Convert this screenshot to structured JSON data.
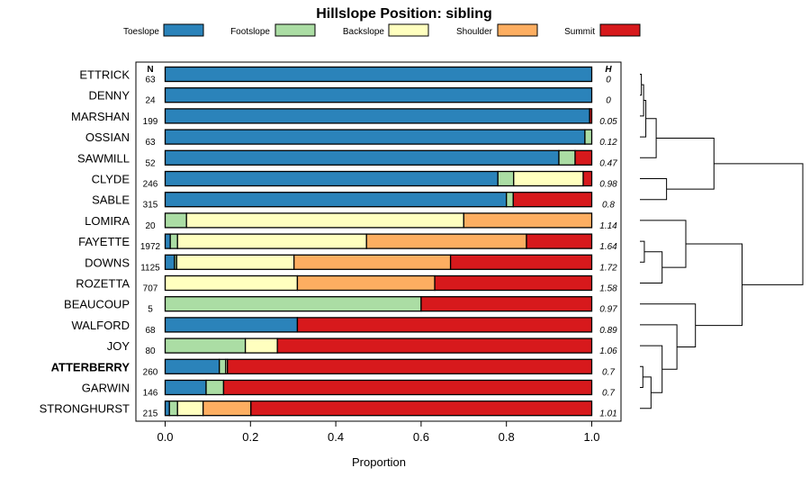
{
  "chart_data": {
    "type": "bar",
    "stacked": "horizontal-proportion",
    "title": "Hillslope Position: sibling",
    "xlabel": "Proportion",
    "xlim": [
      0,
      1
    ],
    "x_ticks": [
      "0.0",
      "0.2",
      "0.4",
      "0.6",
      "0.8",
      "1.0"
    ],
    "n_header": "N",
    "h_header": "H",
    "highlighted": "ATTERBERRY",
    "legend": [
      {
        "name": "Toeslope",
        "color": "#2b83ba"
      },
      {
        "name": "Footslope",
        "color": "#abdda4"
      },
      {
        "name": "Backslope",
        "color": "#ffffbf"
      },
      {
        "name": "Shoulder",
        "color": "#fdae61"
      },
      {
        "name": "Summit",
        "color": "#d7191c"
      }
    ],
    "rows": [
      {
        "label": "ETTRICK",
        "n": "63",
        "h": "0",
        "values": [
          1.0,
          0,
          0,
          0,
          0
        ]
      },
      {
        "label": "DENNY",
        "n": "24",
        "h": "0",
        "values": [
          1.0,
          0,
          0,
          0,
          0
        ]
      },
      {
        "label": "MARSHAN",
        "n": "199",
        "h": "0.05",
        "values": [
          0.995,
          0,
          0,
          0,
          0.005
        ]
      },
      {
        "label": "OSSIAN",
        "n": "63",
        "h": "0.12",
        "values": [
          0.984,
          0.016,
          0,
          0,
          0
        ]
      },
      {
        "label": "SAWMILL",
        "n": "52",
        "h": "0.47",
        "values": [
          0.923,
          0.038,
          0,
          0,
          0.039
        ]
      },
      {
        "label": "CLYDE",
        "n": "246",
        "h": "0.98",
        "values": [
          0.78,
          0.037,
          0.163,
          0,
          0.02
        ]
      },
      {
        "label": "SABLE",
        "n": "315",
        "h": "0.8",
        "values": [
          0.8,
          0.016,
          0,
          0,
          0.184
        ]
      },
      {
        "label": "LOMIRA",
        "n": "20",
        "h": "1.14",
        "values": [
          0,
          0.05,
          0.65,
          0.3,
          0
        ]
      },
      {
        "label": "FAYETTE",
        "n": "1972",
        "h": "1.64",
        "values": [
          0.012,
          0.017,
          0.443,
          0.375,
          0.153
        ]
      },
      {
        "label": "DOWNS",
        "n": "1125",
        "h": "1.72",
        "values": [
          0.022,
          0.005,
          0.275,
          0.367,
          0.331
        ]
      },
      {
        "label": "ROZETTA",
        "n": "707",
        "h": "1.58",
        "values": [
          0,
          0,
          0.31,
          0.322,
          0.368
        ]
      },
      {
        "label": "BEAUCOUP",
        "n": "5",
        "h": "0.97",
        "values": [
          0,
          0.6,
          0,
          0,
          0.4
        ]
      },
      {
        "label": "WALFORD",
        "n": "68",
        "h": "0.89",
        "values": [
          0.31,
          0,
          0,
          0,
          0.69
        ]
      },
      {
        "label": "JOY",
        "n": "80",
        "h": "1.06",
        "values": [
          0,
          0.188,
          0.075,
          0,
          0.737
        ]
      },
      {
        "label": "ATTERBERRY",
        "n": "260",
        "h": "0.7",
        "values": [
          0.127,
          0.015,
          0.004,
          0,
          0.854
        ]
      },
      {
        "label": "GARWIN",
        "n": "146",
        "h": "0.7",
        "values": [
          0.096,
          0.041,
          0,
          0,
          0.863
        ]
      },
      {
        "label": "STRONGHURST",
        "n": "215",
        "h": "1.01",
        "values": [
          0.01,
          0.019,
          0.06,
          0.112,
          0.799
        ]
      }
    ],
    "dendrogram": {
      "leaf_order": [
        "ETTRICK",
        "DENNY",
        "MARSHAN",
        "OSSIAN",
        "SAWMILL",
        "CLYDE",
        "SABLE",
        "LOMIRA",
        "FAYETTE",
        "DOWNS",
        "ROZETTA",
        "BEAUCOUP",
        "WALFORD",
        "JOY",
        "ATTERBERRY",
        "GARWIN",
        "STRONGHURST"
      ],
      "merges": [
        [
          0,
          1,
          0.02
        ],
        [
          -1,
          2,
          0.05
        ],
        [
          -2,
          3,
          0.08
        ],
        [
          -3,
          4,
          0.22
        ],
        [
          5,
          6,
          0.36
        ],
        [
          -4,
          -5,
          1.0
        ],
        [
          8,
          9,
          0.06
        ],
        [
          -7,
          10,
          0.3
        ],
        [
          7,
          -8,
          0.62
        ],
        [
          14,
          15,
          0.04
        ],
        [
          -10,
          16,
          0.15
        ],
        [
          13,
          -11,
          0.3
        ],
        [
          12,
          -12,
          0.5
        ],
        [
          11,
          -13,
          0.75
        ],
        [
          -9,
          -14,
          1.38
        ],
        [
          -6,
          -15,
          2.2
        ]
      ]
    }
  }
}
